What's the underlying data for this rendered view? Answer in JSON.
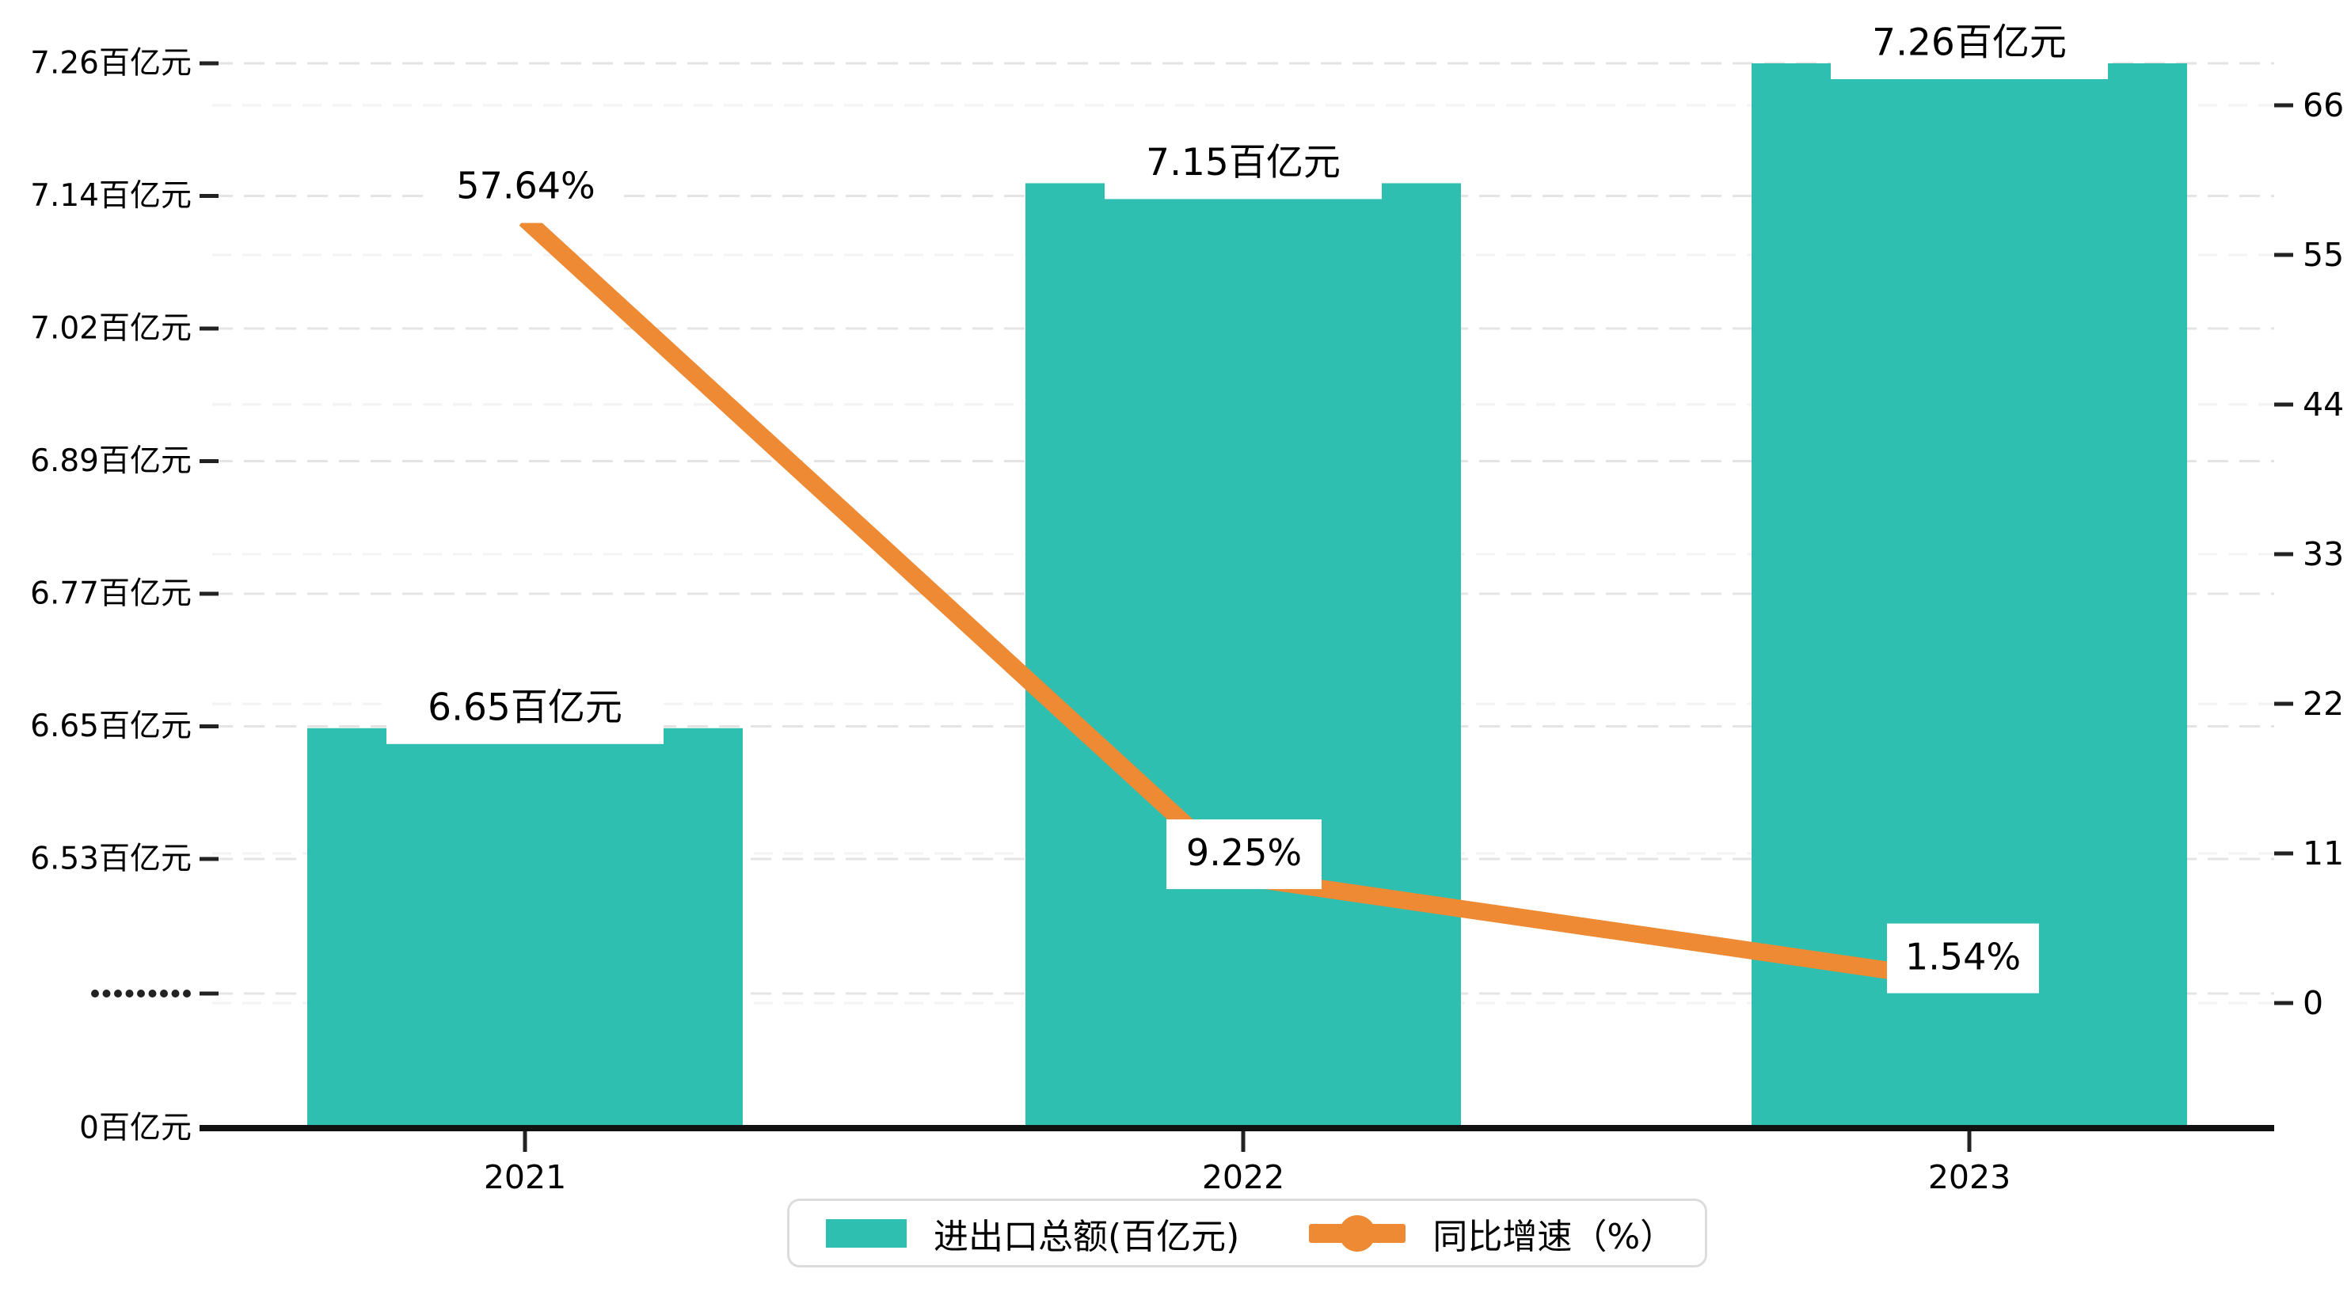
{
  "page": {
    "background": "#ffffff"
  },
  "chart_data": {
    "type": "combo",
    "categories": [
      "2021",
      "2022",
      "2023"
    ],
    "series": [
      {
        "name": "进出口总额(百亿元)",
        "type": "bar",
        "values": [
          6.65,
          7.15,
          7.26
        ],
        "labels": [
          "6.65百亿元",
          "7.15百亿元",
          "7.26百亿元"
        ],
        "axis": "left",
        "color": "#2FBFB0"
      },
      {
        "name": "同比增速（%）",
        "type": "line",
        "values": [
          57.64,
          9.25,
          1.54
        ],
        "labels": [
          "57.64%",
          "9.25%",
          "1.54%"
        ],
        "axis": "right",
        "color": "#ED8A33"
      }
    ],
    "left_axis": {
      "tick_labels": [
        "7.26百亿元",
        "7.14百亿元",
        "7.02百亿元",
        "6.89百亿元",
        "6.77百亿元",
        "6.65百亿元",
        "6.53百亿元",
        ".........",
        "0百亿元"
      ],
      "tick_values": [
        7.26,
        7.14,
        7.02,
        6.89,
        6.77,
        6.65,
        6.53,
        null,
        0
      ],
      "has_break": true,
      "break_symbol": ".........",
      "visible_range": [
        6.53,
        7.26
      ]
    },
    "right_axis": {
      "tick_labels": [
        "66",
        "55",
        "44",
        "33",
        "22",
        "11",
        "0"
      ],
      "tick_values": [
        66,
        55,
        44,
        33,
        22,
        11,
        0
      ],
      "range": [
        0,
        66
      ]
    },
    "x_axis": {
      "tick_labels": [
        "2021",
        "2022",
        "2023"
      ]
    },
    "grid": {
      "style": "dashed",
      "visible": true
    },
    "legend_position": "bottom"
  },
  "legend": {
    "items": [
      {
        "label": "进出口总额(百亿元)",
        "marker": "bar-swatch",
        "color": "#2FBFB0"
      },
      {
        "label": "同比增速（%）",
        "marker": "line-dot",
        "color": "#ED8A33"
      }
    ]
  },
  "colors": {
    "bar": "#2FBFB0",
    "line": "#ED8A33",
    "axis_line": "#111111",
    "tick": "#222222",
    "text": "#000000",
    "grid_major": "#d9d9d9",
    "grid_minor": "#e9e9e9",
    "label_box_bg": "#ffffff",
    "legend_border": "#dcdcdc"
  }
}
